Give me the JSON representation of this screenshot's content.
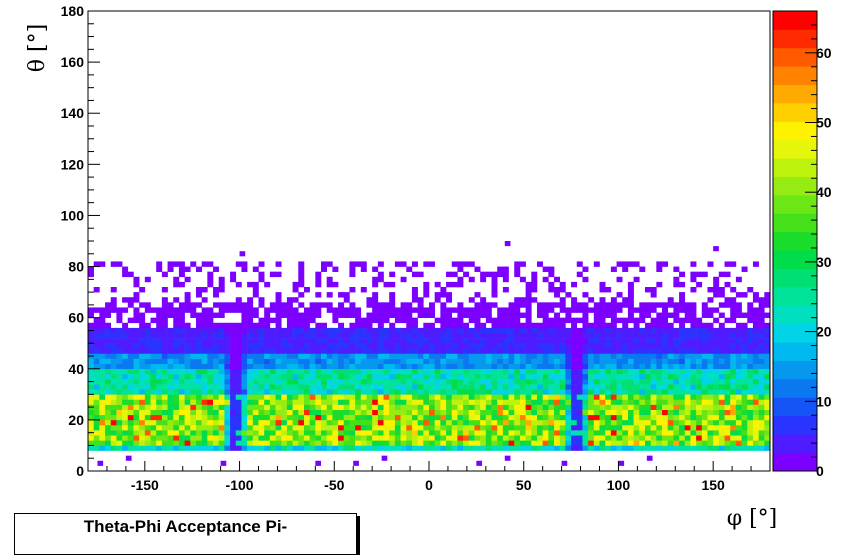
{
  "chart_data": {
    "type": "heatmap",
    "title": "Theta-Phi Acceptance Pi-",
    "xlabel": "φ [°]",
    "ylabel": "θ [°]",
    "xlim": [
      -180,
      180
    ],
    "ylim": [
      0,
      180
    ],
    "x_ticks": [
      -150,
      -100,
      -50,
      0,
      50,
      100,
      150
    ],
    "y_ticks": [
      0,
      20,
      40,
      60,
      80,
      100,
      120,
      140,
      160,
      180
    ],
    "colorbar": {
      "range": [
        0,
        66
      ],
      "ticks": [
        0,
        10,
        20,
        30,
        40,
        50,
        60
      ],
      "palette": [
        "#7c00ff",
        "#4f1cff",
        "#2b33ff",
        "#1655f5",
        "#0a78f0",
        "#0598ee",
        "#00b8f0",
        "#00d4e6",
        "#00e0c0",
        "#00e39a",
        "#00e072",
        "#00dc4a",
        "#1adc2a",
        "#44e11a",
        "#6de615",
        "#96ec12",
        "#bdf20d",
        "#e6f60a",
        "#fff200",
        "#ffd000",
        "#ffaa00",
        "#ff8200",
        "#ff5a00",
        "#ff2a00",
        "#ff0000"
      ]
    },
    "bin_width_phi": 3,
    "bin_width_theta": 2,
    "peak_bins": 35,
    "phi_gaps": [
      -102,
      78
    ],
    "theta_bands": [
      {
        "theta_range": [
          8,
          10
        ],
        "mean_count": 22
      },
      {
        "theta_range": [
          10,
          30
        ],
        "mean_count": 40
      },
      {
        "theta_range": [
          30,
          40
        ],
        "mean_count": 24
      },
      {
        "theta_range": [
          40,
          46
        ],
        "mean_count": 14
      },
      {
        "theta_range": [
          46,
          56
        ],
        "mean_count": 5
      },
      {
        "theta_range": [
          56,
          66
        ],
        "mean_count": 2
      },
      {
        "theta_range": [
          66,
          82
        ],
        "mean_count": 1
      }
    ],
    "grid": false,
    "legend": "none"
  }
}
